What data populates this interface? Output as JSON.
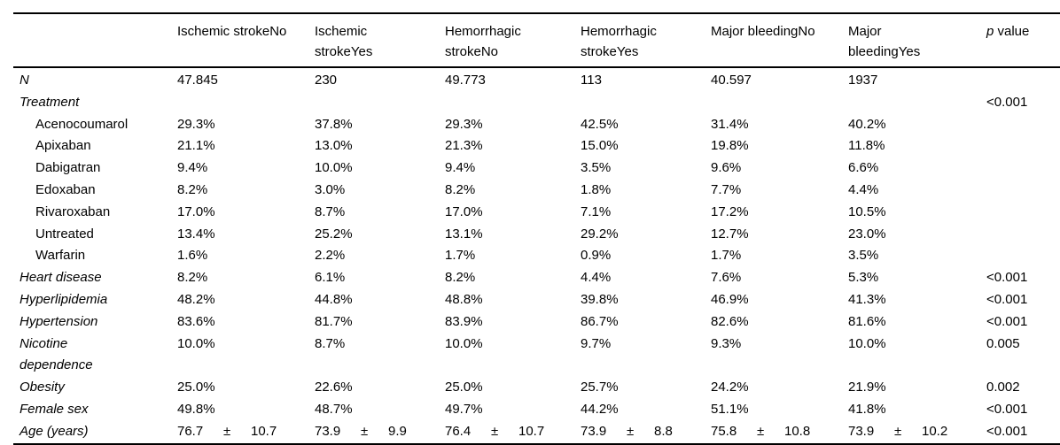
{
  "colors": {
    "background": "#ffffff",
    "text": "#000000",
    "rule": "#000000"
  },
  "table": {
    "header": {
      "columns": [
        "Ischemic strokeNo",
        "Ischemic\nstrokeYes",
        "Hemorrhagic\nstrokeNo",
        "Hemorrhagic\nstrokeYes",
        "Major bleedingNo",
        "Major\nbleedingYes"
      ],
      "p_label": {
        "italic": "p",
        "rest": " value"
      }
    },
    "rows": [
      {
        "label": "N",
        "style": "main",
        "values": [
          "47.845",
          "230",
          "49.773",
          "113",
          "40.597",
          "1937"
        ],
        "p": ""
      },
      {
        "label": "Treatment",
        "style": "main",
        "values": [
          "",
          "",
          "",
          "",
          "",
          ""
        ],
        "p": "<0.001"
      },
      {
        "label": "Acenocoumarol",
        "style": "sub",
        "values": [
          "29.3%",
          "37.8%",
          "29.3%",
          "42.5%",
          "31.4%",
          "40.2%"
        ],
        "p": ""
      },
      {
        "label": "Apixaban",
        "style": "sub",
        "values": [
          "21.1%",
          "13.0%",
          "21.3%",
          "15.0%",
          "19.8%",
          "11.8%"
        ],
        "p": ""
      },
      {
        "label": "Dabigatran",
        "style": "sub",
        "values": [
          "9.4%",
          "10.0%",
          "9.4%",
          "3.5%",
          "9.6%",
          "6.6%"
        ],
        "p": ""
      },
      {
        "label": "Edoxaban",
        "style": "sub",
        "values": [
          "8.2%",
          "3.0%",
          "8.2%",
          "1.8%",
          "7.7%",
          "4.4%"
        ],
        "p": ""
      },
      {
        "label": "Rivaroxaban",
        "style": "sub",
        "values": [
          "17.0%",
          "8.7%",
          "17.0%",
          "7.1%",
          "17.2%",
          "10.5%"
        ],
        "p": ""
      },
      {
        "label": "Untreated",
        "style": "sub",
        "values": [
          "13.4%",
          "25.2%",
          "13.1%",
          "29.2%",
          "12.7%",
          "23.0%"
        ],
        "p": ""
      },
      {
        "label": "Warfarin",
        "style": "sub",
        "values": [
          "1.6%",
          "2.2%",
          "1.7%",
          "0.9%",
          "1.7%",
          "3.5%"
        ],
        "p": ""
      },
      {
        "label": "Heart disease",
        "style": "main",
        "values": [
          "8.2%",
          "6.1%",
          "8.2%",
          "4.4%",
          "7.6%",
          "5.3%"
        ],
        "p": "<0.001"
      },
      {
        "label": "Hyperlipidemia",
        "style": "main",
        "values": [
          "48.2%",
          "44.8%",
          "48.8%",
          "39.8%",
          "46.9%",
          "41.3%"
        ],
        "p": "<0.001"
      },
      {
        "label": "Hypertension",
        "style": "main",
        "values": [
          "83.6%",
          "81.7%",
          "83.9%",
          "86.7%",
          "82.6%",
          "81.6%"
        ],
        "p": "<0.001"
      },
      {
        "label": "Nicotine\ndependence",
        "style": "main",
        "values": [
          "10.0%",
          "8.7%",
          "10.0%",
          "9.7%",
          "9.3%",
          "10.0%"
        ],
        "p": "0.005"
      },
      {
        "label": "Obesity",
        "style": "main",
        "values": [
          "25.0%",
          "22.6%",
          "25.0%",
          "25.7%",
          "24.2%",
          "21.9%"
        ],
        "p": "0.002"
      },
      {
        "label": "Female sex",
        "style": "main",
        "values": [
          "49.8%",
          "48.7%",
          "49.7%",
          "44.2%",
          "51.1%",
          "41.8%"
        ],
        "p": "<0.001"
      },
      {
        "label": "Age (years)",
        "style": "main",
        "values": [
          {
            "mean": "76.7",
            "pm": "±",
            "sd": "10.7"
          },
          {
            "mean": "73.9",
            "pm": "±",
            "sd": "9.9"
          },
          {
            "mean": "76.4",
            "pm": "±",
            "sd": "10.7"
          },
          {
            "mean": "73.9",
            "pm": "±",
            "sd": "8.8"
          },
          {
            "mean": "75.8",
            "pm": "±",
            "sd": "10.8"
          },
          {
            "mean": "73.9",
            "pm": "±",
            "sd": "10.2"
          }
        ],
        "p": "<0.001"
      }
    ]
  }
}
